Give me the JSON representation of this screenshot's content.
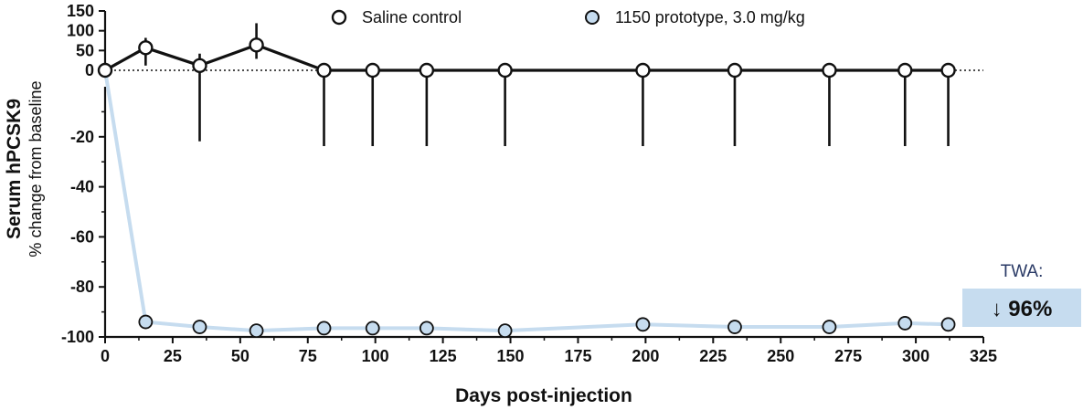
{
  "chart_data": {
    "type": "line",
    "xlabel": "Days post-injection",
    "ylabel": "Serum hPCSK9",
    "ylabel_sub": "% change from baseline",
    "x_ticks": [
      0,
      25,
      50,
      75,
      100,
      125,
      150,
      175,
      200,
      225,
      250,
      275,
      300,
      325
    ],
    "xlim": [
      0,
      325
    ],
    "y_ticks_lower": [
      -20,
      -40,
      -60,
      -80,
      -100
    ],
    "y_ticks_upper": [
      150,
      100,
      50,
      0
    ],
    "ylim_lower": [
      -100,
      0
    ],
    "ylim_upper": [
      0,
      150
    ],
    "y_axis": "broken (upper segment 0 to 150, lower segment -100 to 0)",
    "legend_position": "top",
    "series": [
      {
        "name": "Saline control",
        "marker": "open-circle",
        "line_color": "#111111",
        "x": [
          0,
          15,
          35,
          56,
          81,
          99,
          119,
          148,
          199,
          233,
          268,
          296,
          312
        ],
        "y": [
          0,
          57,
          12,
          64,
          0,
          0,
          0,
          0,
          0,
          0,
          0,
          0,
          0
        ],
        "error_upper": [
          0,
          25,
          30,
          55,
          10,
          8,
          8,
          8,
          8,
          8,
          8,
          8,
          8
        ],
        "error_lower": [
          0,
          45,
          35,
          35,
          25,
          25,
          25,
          25,
          25,
          25,
          25,
          25,
          25
        ]
      },
      {
        "name": "1150 prototype, 3.0 mg/kg",
        "marker": "filled-circle",
        "marker_color": "#c6dcef",
        "line_color": "#c6dcef",
        "x": [
          0,
          15,
          35,
          56,
          81,
          99,
          119,
          148,
          199,
          233,
          268,
          296,
          312
        ],
        "y": [
          0,
          -94,
          -96,
          -97.5,
          -96.5,
          -96.5,
          -96.5,
          -97.5,
          -95,
          -96,
          -96,
          -94.5,
          -95
        ]
      }
    ],
    "annotation": {
      "label": "TWA:",
      "value": "↓ 96%",
      "box_color": "#c6dcef"
    }
  }
}
